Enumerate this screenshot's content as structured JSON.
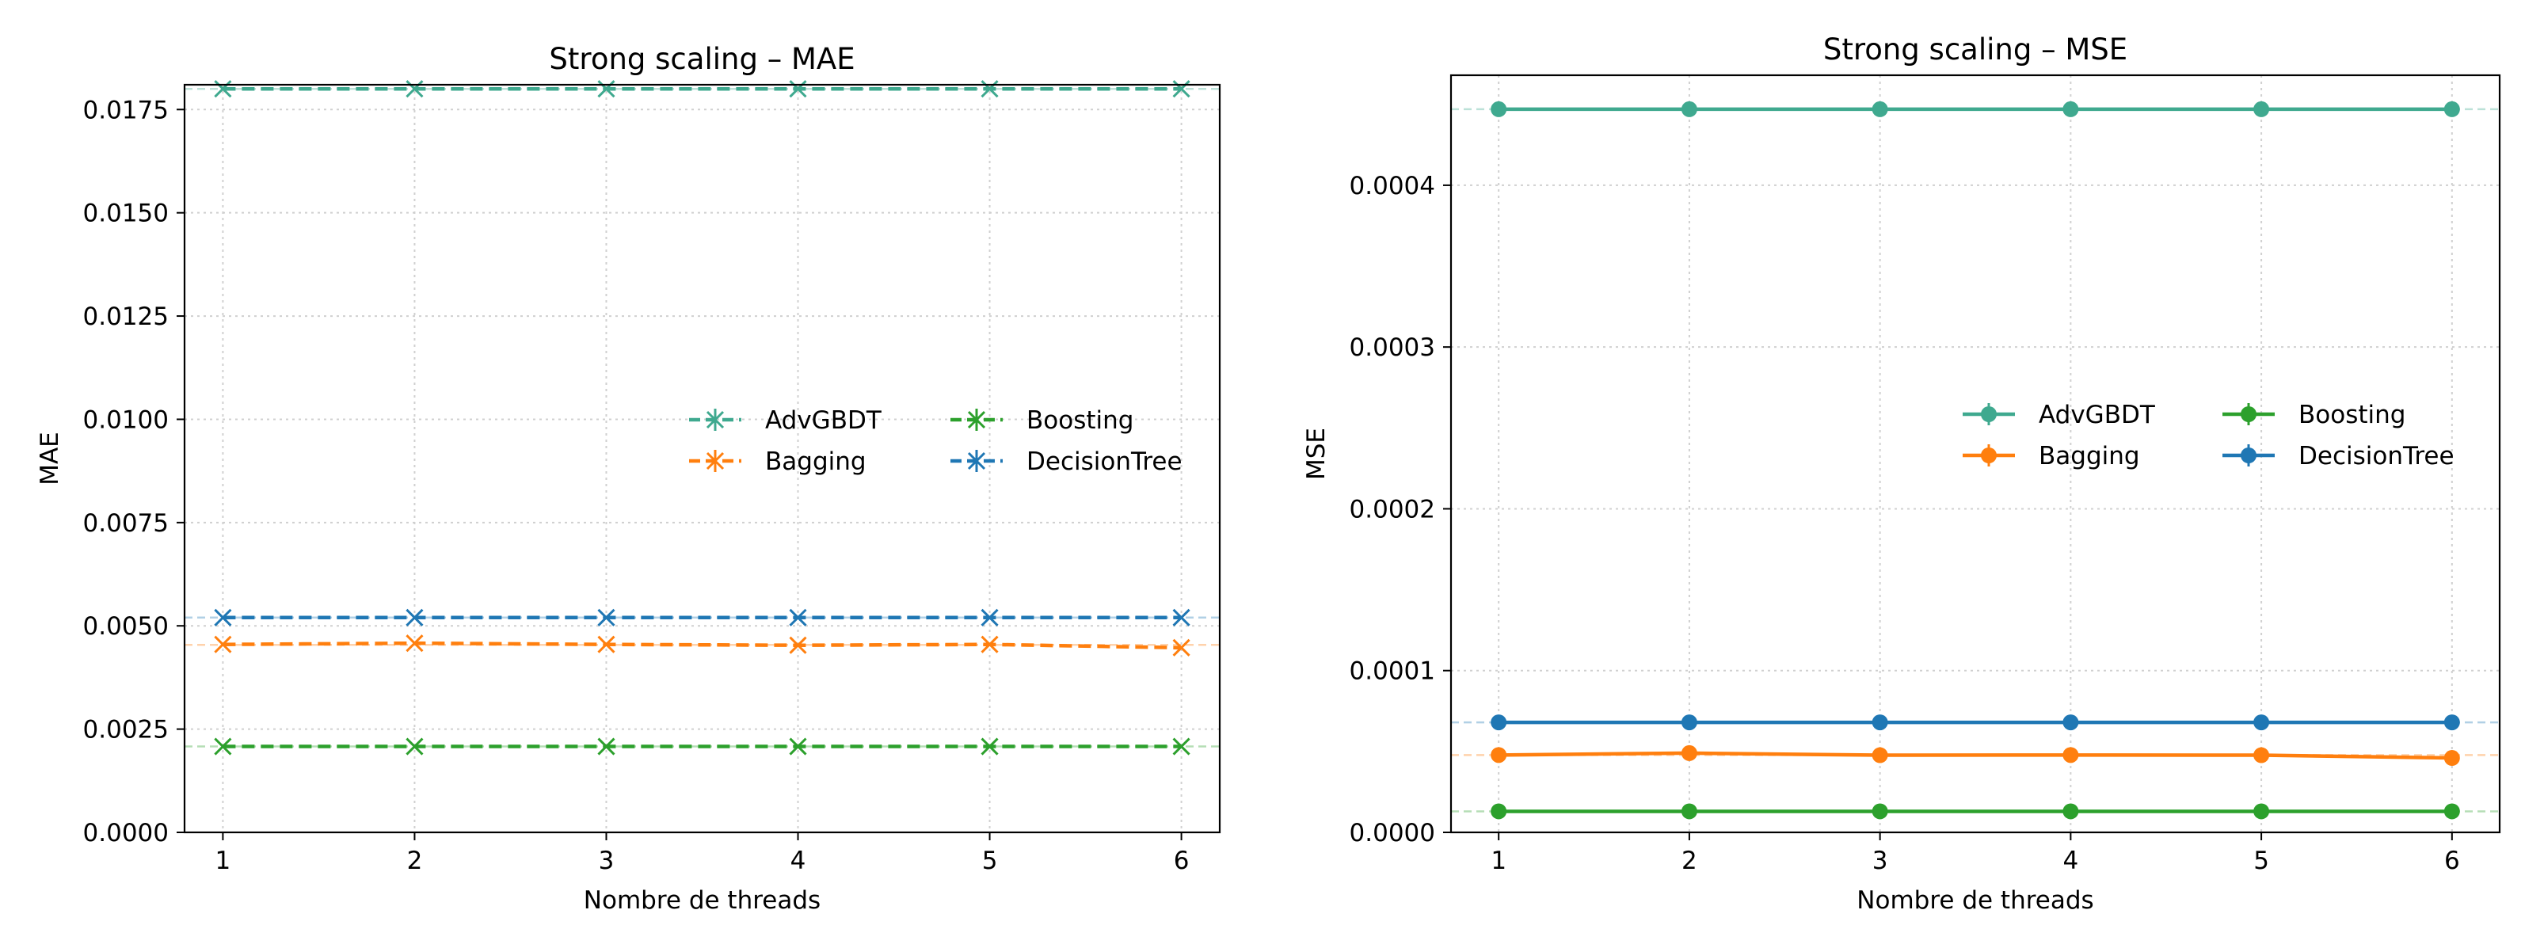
{
  "colors": {
    "AdvGBDT": "#3fa98f",
    "Bagging": "#ff7f0e",
    "Boosting": "#2ca02c",
    "DecisionTree": "#1f77b4"
  },
  "chart_data": [
    {
      "type": "line",
      "title": "Strong scaling – MAE",
      "xlabel": "Nombre de threads",
      "ylabel": "MAE",
      "marker": "x",
      "linestyle": "dashed",
      "x": [
        1,
        2,
        3,
        4,
        5,
        6
      ],
      "xlim": [
        0.8,
        6.2
      ],
      "ylim": [
        0,
        0.0181
      ],
      "yticks": [
        "0.0000",
        "0.0025",
        "0.0050",
        "0.0075",
        "0.0100",
        "0.0125",
        "0.0150",
        "0.0175"
      ],
      "ytick_values": [
        0,
        0.0025,
        0.005,
        0.0075,
        0.01,
        0.0125,
        0.015,
        0.0175
      ],
      "xticks": [
        "1",
        "2",
        "3",
        "4",
        "5",
        "6"
      ],
      "grid": true,
      "legend_position": "center-right",
      "legend_columns": 2,
      "series": [
        {
          "name": "AdvGBDT",
          "values": [
            0.018,
            0.018,
            0.018,
            0.018,
            0.018,
            0.018
          ],
          "reference_line": 0.018
        },
        {
          "name": "Bagging",
          "values": [
            0.00455,
            0.00458,
            0.00455,
            0.00453,
            0.00455,
            0.00447
          ],
          "reference_line": 0.00454
        },
        {
          "name": "Boosting",
          "values": [
            0.00208,
            0.00208,
            0.00208,
            0.00208,
            0.00208,
            0.00208
          ],
          "reference_line": 0.00208
        },
        {
          "name": "DecisionTree",
          "values": [
            0.0052,
            0.0052,
            0.0052,
            0.0052,
            0.0052,
            0.0052
          ],
          "reference_line": 0.0052
        }
      ]
    },
    {
      "type": "line",
      "title": "Strong scaling – MSE",
      "xlabel": "Nombre de threads",
      "ylabel": "MSE",
      "marker": "o",
      "linestyle": "solid",
      "x": [
        1,
        2,
        3,
        4,
        5,
        6
      ],
      "xlim": [
        0.75,
        6.25
      ],
      "ylim": [
        0,
        0.000468
      ],
      "yticks": [
        "0.0000",
        "0.0001",
        "0.0002",
        "0.0003",
        "0.0004"
      ],
      "ytick_values": [
        0,
        0.0001,
        0.0002,
        0.0003,
        0.0004
      ],
      "xticks": [
        "1",
        "2",
        "3",
        "4",
        "5",
        "6"
      ],
      "grid": true,
      "legend_position": "center-right",
      "legend_columns": 2,
      "series": [
        {
          "name": "AdvGBDT",
          "values": [
            0.000447,
            0.000447,
            0.000447,
            0.000447,
            0.000447,
            0.000447
          ],
          "reference_line": 0.000447
        },
        {
          "name": "Bagging",
          "values": [
            4.78e-05,
            4.9e-05,
            4.77e-05,
            4.78e-05,
            4.77e-05,
            4.6e-05
          ],
          "reference_line": 4.78e-05
        },
        {
          "name": "Boosting",
          "values": [
            1.3e-05,
            1.3e-05,
            1.3e-05,
            1.3e-05,
            1.3e-05,
            1.3e-05
          ],
          "reference_line": 1.3e-05
        },
        {
          "name": "DecisionTree",
          "values": [
            6.8e-05,
            6.8e-05,
            6.8e-05,
            6.8e-05,
            6.8e-05,
            6.8e-05
          ],
          "reference_line": 6.8e-05
        }
      ]
    }
  ]
}
